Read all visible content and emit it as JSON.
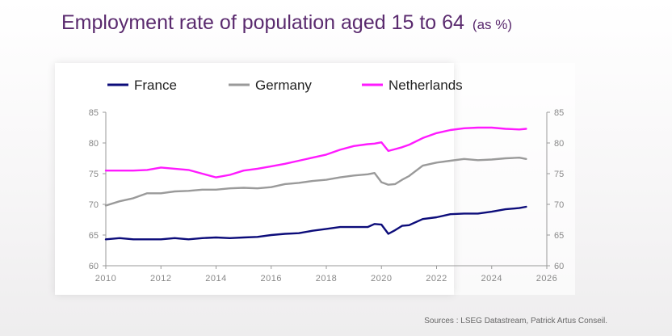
{
  "title": "Employment rate of population aged 15 to 64",
  "title_unit": "(as %)",
  "source": "Sources : LSEG Datastream, Patrick Artus Conseil.",
  "colors": {
    "France": "#0c0c7a",
    "Germany": "#9a9a9a",
    "Netherlands": "#ff1aff",
    "title": "#5a2a6e"
  },
  "chart_data": {
    "type": "line",
    "title": "Employment rate of population aged 15 to 64 (as %)",
    "xlabel": "",
    "ylabel": "",
    "xlim": [
      2010,
      2026
    ],
    "ylim": [
      60,
      85
    ],
    "x_ticks": [
      "2010",
      "2012",
      "2014",
      "2016",
      "2018",
      "2020",
      "2022",
      "2024",
      "2026"
    ],
    "y_ticks": [
      "60",
      "65",
      "70",
      "75",
      "80",
      "85"
    ],
    "y_axis_both_sides": true,
    "grid": false,
    "legend_position": "top",
    "x": [
      2010.0,
      2010.5,
      2011.0,
      2011.5,
      2012.0,
      2012.5,
      2013.0,
      2013.5,
      2014.0,
      2014.5,
      2015.0,
      2015.5,
      2016.0,
      2016.5,
      2017.0,
      2017.5,
      2018.0,
      2018.5,
      2019.0,
      2019.5,
      2019.75,
      2020.0,
      2020.25,
      2020.5,
      2020.75,
      2021.0,
      2021.5,
      2022.0,
      2022.5,
      2023.0,
      2023.5,
      2024.0,
      2024.5,
      2025.0,
      2025.25
    ],
    "series": [
      {
        "name": "France",
        "values": [
          64.3,
          64.5,
          64.3,
          64.3,
          64.3,
          64.5,
          64.3,
          64.5,
          64.6,
          64.5,
          64.6,
          64.7,
          65.0,
          65.2,
          65.3,
          65.7,
          66.0,
          66.3,
          66.3,
          66.3,
          66.8,
          66.7,
          65.2,
          65.8,
          66.5,
          66.6,
          67.6,
          67.9,
          68.4,
          68.5,
          68.5,
          68.8,
          69.2,
          69.4,
          69.6
        ]
      },
      {
        "name": "Germany",
        "values": [
          69.8,
          70.5,
          71.0,
          71.8,
          71.8,
          72.1,
          72.2,
          72.4,
          72.4,
          72.6,
          72.7,
          72.6,
          72.8,
          73.3,
          73.5,
          73.8,
          74.0,
          74.4,
          74.7,
          74.9,
          75.1,
          73.6,
          73.2,
          73.3,
          74.0,
          74.6,
          76.3,
          76.8,
          77.1,
          77.4,
          77.2,
          77.3,
          77.5,
          77.6,
          77.4
        ]
      },
      {
        "name": "Netherlands",
        "values": [
          75.5,
          75.5,
          75.5,
          75.6,
          76.0,
          75.8,
          75.6,
          75.0,
          74.4,
          74.8,
          75.5,
          75.8,
          76.2,
          76.6,
          77.1,
          77.6,
          78.1,
          78.9,
          79.5,
          79.8,
          79.9,
          80.1,
          78.7,
          79.0,
          79.3,
          79.7,
          80.8,
          81.6,
          82.1,
          82.4,
          82.5,
          82.5,
          82.3,
          82.2,
          82.3
        ]
      }
    ]
  }
}
